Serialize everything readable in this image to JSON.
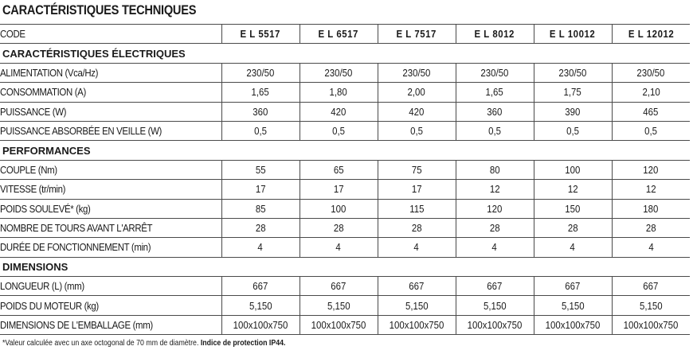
{
  "title": "CARACTÉRISTIQUES TECHNIQUES",
  "header": {
    "label": "CODE",
    "models": [
      "E L 5517",
      "E L 6517",
      "E L 7517",
      "E L 8012",
      "E L 10012",
      "E L 12012"
    ]
  },
  "sections": [
    {
      "title": "CARACTÉRISTIQUES ÉLECTRIQUES",
      "rows": [
        {
          "label": "ALIMENTATION (Vca/Hz)",
          "values": [
            "230/50",
            "230/50",
            "230/50",
            "230/50",
            "230/50",
            "230/50"
          ]
        },
        {
          "label": "CONSOMMATION (A)",
          "values": [
            "1,65",
            "1,80",
            "2,00",
            "1,65",
            "1,75",
            "2,10"
          ]
        },
        {
          "label": "PUISSANCE (W)",
          "values": [
            "360",
            "420",
            "420",
            "360",
            "390",
            "465"
          ]
        },
        {
          "label": "PUISSANCE ABSORBÉE EN VEILLE (W)",
          "values": [
            "0,5",
            "0,5",
            "0,5",
            "0,5",
            "0,5",
            "0,5"
          ]
        }
      ]
    },
    {
      "title": "PERFORMANCES",
      "rows": [
        {
          "label": "COUPLE (Nm)",
          "values": [
            "55",
            "65",
            "75",
            "80",
            "100",
            "120"
          ]
        },
        {
          "label": "VITESSE (tr/min)",
          "values": [
            "17",
            "17",
            "17",
            "12",
            "12",
            "12"
          ]
        },
        {
          "label": "POIDS SOULEVÉ* (kg)",
          "values": [
            "85",
            "100",
            "115",
            "120",
            "150",
            "180"
          ]
        },
        {
          "label": "NOMBRE DE TOURS AVANT L'ARRÊT",
          "values": [
            "28",
            "28",
            "28",
            "28",
            "28",
            "28"
          ]
        },
        {
          "label": "DURÉE DE FONCTIONNEMENT (min)",
          "values": [
            "4",
            "4",
            "4",
            "4",
            "4",
            "4"
          ]
        }
      ]
    },
    {
      "title": "DIMENSIONS",
      "rows": [
        {
          "label": "LONGUEUR (L) (mm)",
          "values": [
            "667",
            "667",
            "667",
            "667",
            "667",
            "667"
          ]
        },
        {
          "label": "POIDS DU MOTEUR (kg)",
          "values": [
            "5,150",
            "5,150",
            "5,150",
            "5,150",
            "5,150",
            "5,150"
          ]
        },
        {
          "label": "DIMENSIONS DE L'EMBALLAGE (mm)",
          "values": [
            "100x100x750",
            "100x100x750",
            "100x100x750",
            "100x100x750",
            "100x100x750",
            "100x100x750"
          ]
        }
      ]
    }
  ],
  "footnote": {
    "text": "*Valeur calculée avec un axe octogonal de 70 mm de diamètre.",
    "bold": "Indice de protection IP44."
  }
}
